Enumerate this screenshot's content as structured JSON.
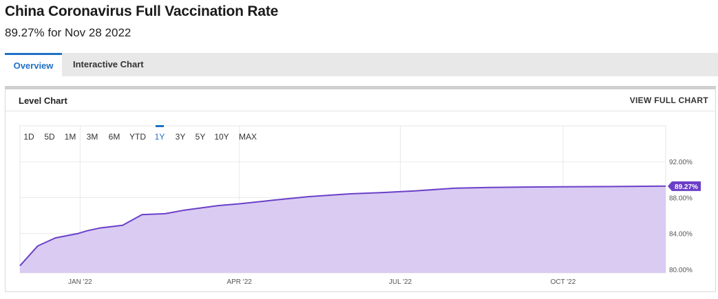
{
  "header": {
    "title": "China Coronavirus Full Vaccination Rate",
    "subtitle": "89.27% for Nov 28 2022"
  },
  "tabs": [
    {
      "label": "Overview",
      "active": true
    },
    {
      "label": "Interactive Chart",
      "active": false
    }
  ],
  "card": {
    "title": "Level Chart",
    "link": "VIEW FULL CHART"
  },
  "range_buttons": [
    {
      "label": "1D",
      "active": false
    },
    {
      "label": "5D",
      "active": false
    },
    {
      "label": "1M",
      "active": false
    },
    {
      "label": "3M",
      "active": false
    },
    {
      "label": "6M",
      "active": false
    },
    {
      "label": "YTD",
      "active": false
    },
    {
      "label": "1Y",
      "active": true
    },
    {
      "label": "3Y",
      "active": false
    },
    {
      "label": "5Y",
      "active": false
    },
    {
      "label": "10Y",
      "active": false
    },
    {
      "label": "MAX",
      "active": false
    }
  ],
  "colors": {
    "accent": "#1f6fc5",
    "line": "#6a3fc8",
    "fill": "#d9cbf2",
    "badge": "#6a3fc8"
  },
  "chart_data": {
    "type": "area",
    "title": "",
    "xlabel": "",
    "ylabel": "",
    "x_ticks": [
      {
        "label": "JAN '22",
        "date": "2022-01-01"
      },
      {
        "label": "APR '22",
        "date": "2022-04-01"
      },
      {
        "label": "JUL '22",
        "date": "2022-07-01"
      },
      {
        "label": "OCT '22",
        "date": "2022-10-01"
      }
    ],
    "xlim": [
      "2021-11-28",
      "2022-11-28"
    ],
    "y_ticks": [
      "80.00%",
      "84.00%",
      "88.00%",
      "92.00%"
    ],
    "ylim": [
      79.6,
      96.0
    ],
    "grid": true,
    "last_value_label": "89.27%",
    "series": [
      {
        "x": [
          "2021-11-28",
          "2021-12-08",
          "2021-12-18",
          "2021-12-31",
          "2022-01-05",
          "2022-01-12",
          "2022-01-25",
          "2022-02-05",
          "2022-02-18",
          "2022-03-01",
          "2022-03-20",
          "2022-04-01",
          "2022-04-20",
          "2022-05-10",
          "2022-06-01",
          "2022-06-20",
          "2022-07-10",
          "2022-08-01",
          "2022-08-20",
          "2022-09-10",
          "2022-10-01",
          "2022-10-20",
          "2022-11-10",
          "2022-11-28"
        ],
        "y": [
          80.4,
          82.6,
          83.5,
          84.0,
          84.3,
          84.6,
          84.9,
          86.1,
          86.2,
          86.6,
          87.1,
          87.3,
          87.7,
          88.1,
          88.4,
          88.55,
          88.75,
          89.05,
          89.12,
          89.17,
          89.2,
          89.22,
          89.25,
          89.27
        ]
      }
    ]
  }
}
